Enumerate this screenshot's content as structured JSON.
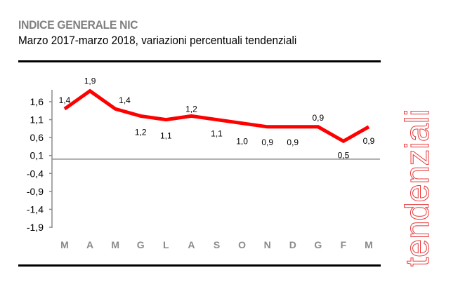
{
  "header": {
    "title": "INDICE GENERALE NIC",
    "subtitle": "Marzo 2017-marzo 2018, variazioni percentuali tendenziali"
  },
  "side_label": "tendenziali",
  "colors": {
    "line": "#ff0000",
    "axis": "#8c8c8c",
    "title": "#7f7f7f",
    "side": "#e8393a"
  },
  "chart_data": {
    "type": "line",
    "title": "INDICE GENERALE NIC",
    "subtitle": "Marzo 2017-marzo 2018, variazioni percentuali tendenziali",
    "xlabel": "",
    "ylabel": "",
    "categories": [
      "M",
      "A",
      "M",
      "G",
      "L",
      "A",
      "S",
      "O",
      "N",
      "D",
      "G",
      "F",
      "M"
    ],
    "series": [
      {
        "name": "Indice generale NIC",
        "values": [
          1.4,
          1.9,
          1.4,
          1.2,
          1.1,
          1.2,
          1.1,
          1.0,
          0.9,
          0.9,
          0.9,
          0.5,
          0.9
        ]
      }
    ],
    "data_labels": [
      "1,4",
      "1,9",
      "1,4",
      "1,2",
      "1,1",
      "1,2",
      "1,1",
      "1,0",
      "0,9",
      "0,9",
      "0,9",
      "0,5",
      "0,9"
    ],
    "y_ticks": [
      1.6,
      1.1,
      0.6,
      0.1,
      -0.4,
      -0.9,
      -1.4,
      -1.9
    ],
    "y_tick_labels": [
      "1,6",
      "1,1",
      "0,6",
      "0,1",
      "-0,4",
      "-0,9",
      "-1,4",
      "-1,9"
    ],
    "ylim": [
      -1.9,
      1.9
    ],
    "grid": false,
    "legend": "none"
  }
}
